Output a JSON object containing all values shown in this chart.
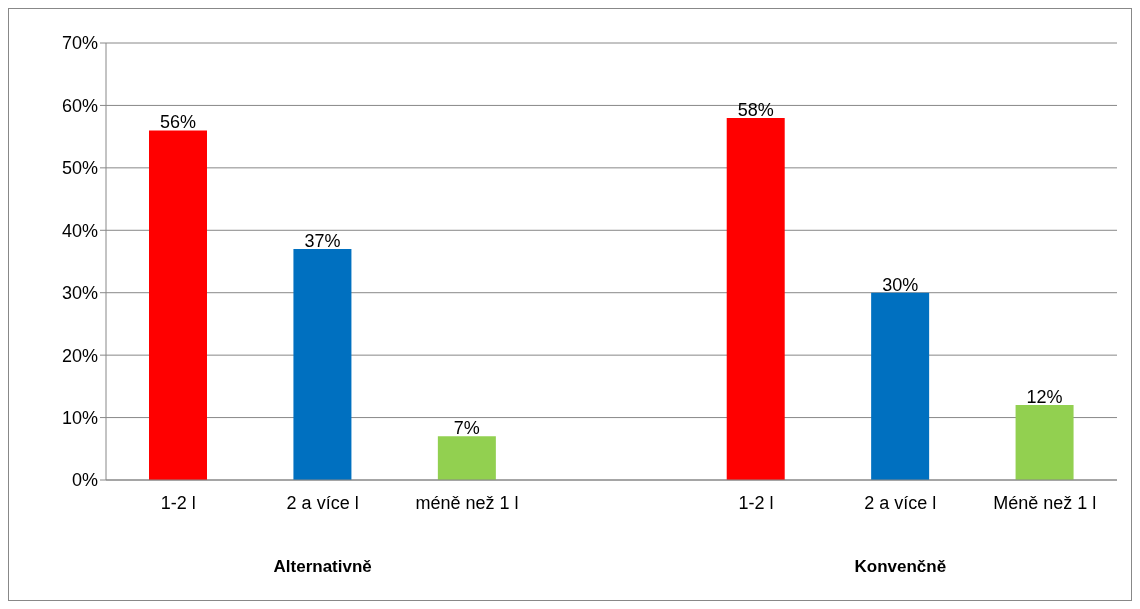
{
  "chart_data": {
    "type": "bar",
    "categories": [
      "1-2 l",
      "2 a více l",
      "méně než 1 l",
      null,
      "1-2 l",
      "2 a více l",
      "Méně než 1 l"
    ],
    "values": [
      56,
      37,
      7,
      null,
      58,
      30,
      12
    ],
    "colors": [
      "#ff0000",
      "#0070c0",
      "#92d050",
      null,
      "#ff0000",
      "#0070c0",
      "#92d050"
    ],
    "value_labels": [
      "56%",
      "37%",
      "7%",
      null,
      "58%",
      "30%",
      "12%"
    ],
    "ylim": [
      0,
      70
    ],
    "yticks": [
      {
        "value": 0,
        "label": "0%"
      },
      {
        "value": 10,
        "label": "10%"
      },
      {
        "value": 20,
        "label": "20%"
      },
      {
        "value": 30,
        "label": "30%"
      },
      {
        "value": 40,
        "label": "40%"
      },
      {
        "value": 50,
        "label": "50%"
      },
      {
        "value": 60,
        "label": "60%"
      },
      {
        "value": 70,
        "label": "70%"
      }
    ],
    "grid": "y",
    "legend": false,
    "annotations": [
      "Alternativně",
      "Konvenčně"
    ]
  }
}
